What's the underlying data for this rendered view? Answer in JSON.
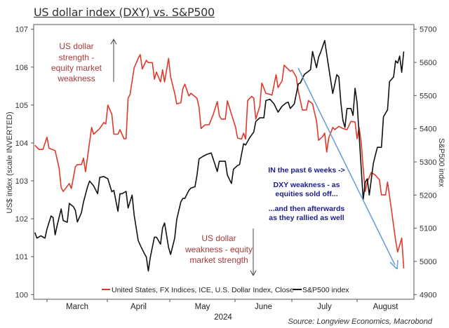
{
  "title": "US dollar index (DXY) vs. S&P500",
  "source": "Source: Longview Economics, Macrobond",
  "chart_data": {
    "type": "line",
    "title": "US dollar index (DXY) vs. S&P500",
    "xlabel": "2024",
    "ylabel_left": "US$ index (scale INVERTED)",
    "ylabel_right": "S&P500 index",
    "x_ticks": [
      "March",
      "April",
      "May",
      "June",
      "July",
      "August"
    ],
    "y_left": {
      "range": [
        100,
        107
      ],
      "ticks": [
        "100",
        "101",
        "102",
        "103",
        "104",
        "105",
        "106",
        "107"
      ]
    },
    "y_right": {
      "range": [
        4900,
        5700
      ],
      "ticks": [
        "4900",
        "5000",
        "5100",
        "5200",
        "5300",
        "5400",
        "5500",
        "5600",
        "5700"
      ]
    },
    "grid": false,
    "legend_position": "bottom",
    "series": [
      {
        "name": "United States, FX Indices, ICE, U.S. Dollar Index, Close",
        "axis": "left",
        "color": "#e0392b",
        "points": [
          [
            "2024-02-24",
            103.94
          ],
          [
            "2024-02-26",
            103.83
          ],
          [
            "2024-02-28",
            103.83
          ],
          [
            "2024-03-01",
            104.15
          ],
          [
            "2024-03-02",
            103.86
          ],
          [
            "2024-03-05",
            103.8
          ],
          [
            "2024-03-07",
            103.33
          ],
          [
            "2024-03-08",
            102.82
          ],
          [
            "2024-03-09",
            102.72
          ],
          [
            "2024-03-12",
            102.93
          ],
          [
            "2024-03-13",
            102.8
          ],
          [
            "2024-03-15",
            103.37
          ],
          [
            "2024-03-16",
            103.43
          ],
          [
            "2024-03-18",
            103.43
          ],
          [
            "2024-03-19",
            103.6
          ],
          [
            "2024-03-20",
            103.24
          ],
          [
            "2024-03-23",
            104.41
          ],
          [
            "2024-03-24",
            104.23
          ],
          [
            "2024-03-27",
            104.38
          ],
          [
            "2024-03-29",
            104.54
          ],
          [
            "2024-03-30",
            104.5
          ],
          [
            "2024-03-31",
            105.0
          ],
          [
            "2024-04-02",
            104.76
          ],
          [
            "2024-04-03",
            104.23
          ],
          [
            "2024-04-05",
            104.23
          ],
          [
            "2024-04-06",
            104.35
          ],
          [
            "2024-04-08",
            104.11
          ],
          [
            "2024-04-09",
            104.11
          ],
          [
            "2024-04-10",
            105.18
          ],
          [
            "2024-04-11",
            105.28
          ],
          [
            "2024-04-13",
            105.98
          ],
          [
            "2024-04-15",
            106.23
          ],
          [
            "2024-04-16",
            106.33
          ],
          [
            "2024-04-17",
            105.95
          ],
          [
            "2024-04-19",
            106.18
          ],
          [
            "2024-04-20",
            106.12
          ],
          [
            "2024-04-22",
            106.12
          ],
          [
            "2024-04-23",
            105.68
          ],
          [
            "2024-04-24",
            105.87
          ],
          [
            "2024-04-26",
            105.61
          ],
          [
            "2024-04-27",
            105.93
          ],
          [
            "2024-04-28",
            105.61
          ],
          [
            "2024-04-30",
            106.23
          ],
          [
            "2024-05-01",
            105.74
          ],
          [
            "2024-05-03",
            105.31
          ],
          [
            "2024-05-04",
            105.03
          ],
          [
            "2024-05-06",
            105.06
          ],
          [
            "2024-05-07",
            105.43
          ],
          [
            "2024-05-08",
            105.55
          ],
          [
            "2024-05-10",
            105.24
          ],
          [
            "2024-05-11",
            105.31
          ],
          [
            "2024-05-14",
            105.18
          ],
          [
            "2024-05-15",
            104.94
          ],
          [
            "2024-05-16",
            104.38
          ],
          [
            "2024-05-18",
            104.48
          ],
          [
            "2024-05-20",
            104.48
          ],
          [
            "2024-05-22",
            104.75
          ],
          [
            "2024-05-24",
            105.09
          ],
          [
            "2024-05-25",
            104.72
          ],
          [
            "2024-05-26",
            104.63
          ],
          [
            "2024-05-28",
            104.63
          ],
          [
            "2024-05-29",
            105.11
          ],
          [
            "2024-05-31",
            104.76
          ],
          [
            "2024-06-02",
            104.42
          ],
          [
            "2024-06-03",
            104.13
          ],
          [
            "2024-06-05",
            104.1
          ],
          [
            "2024-06-06",
            104.26
          ],
          [
            "2024-06-07",
            104.1
          ],
          [
            "2024-06-08",
            105.12
          ],
          [
            "2024-06-10",
            105.23
          ],
          [
            "2024-06-11",
            105.18
          ],
          [
            "2024-06-12",
            104.63
          ],
          [
            "2024-06-14",
            104.97
          ],
          [
            "2024-06-15",
            105.58
          ],
          [
            "2024-06-17",
            105.31
          ],
          [
            "2024-06-19",
            105.28
          ],
          [
            "2024-06-20",
            105.26
          ],
          [
            "2024-06-22",
            105.8
          ],
          [
            "2024-06-23",
            105.46
          ],
          [
            "2024-06-25",
            105.64
          ],
          [
            "2024-06-26",
            106.05
          ],
          [
            "2024-06-29",
            105.89
          ],
          [
            "2024-06-30",
            105.92
          ],
          [
            "2024-07-02",
            105.74
          ],
          [
            "2024-07-03",
            105.37
          ],
          [
            "2024-07-05",
            104.87
          ],
          [
            "2024-07-07",
            104.87
          ],
          [
            "2024-07-08",
            105.12
          ],
          [
            "2024-07-10",
            105.03
          ],
          [
            "2024-07-12",
            104.57
          ],
          [
            "2024-07-13",
            104.07
          ],
          [
            "2024-07-15",
            104.17
          ],
          [
            "2024-07-16",
            104.26
          ],
          [
            "2024-07-17",
            103.76
          ],
          [
            "2024-07-18",
            104.13
          ],
          [
            "2024-07-20",
            104.41
          ],
          [
            "2024-07-21",
            104.35
          ],
          [
            "2024-07-23",
            104.44
          ],
          [
            "2024-07-25",
            104.38
          ],
          [
            "2024-07-27",
            104.35
          ],
          [
            "2024-07-29",
            104.57
          ],
          [
            "2024-07-31",
            104.55
          ],
          [
            "2024-08-01",
            104.11
          ],
          [
            "2024-08-02",
            104.41
          ],
          [
            "2024-08-03",
            104.02
          ],
          [
            "2024-08-04",
            103.33
          ],
          [
            "2024-08-05",
            102.72
          ],
          [
            "2024-08-06",
            102.97
          ],
          [
            "2024-08-08",
            103.22
          ],
          [
            "2024-08-10",
            103.15
          ],
          [
            "2024-08-12",
            103.03
          ],
          [
            "2024-08-13",
            102.63
          ],
          [
            "2024-08-15",
            102.63
          ],
          [
            "2024-08-16",
            102.97
          ],
          [
            "2024-08-18",
            102.22
          ],
          [
            "2024-08-20",
            101.43
          ],
          [
            "2024-08-21",
            101.12
          ],
          [
            "2024-08-23",
            101.49
          ],
          [
            "2024-08-24",
            100.69
          ]
        ]
      },
      {
        "name": "S&P500 index",
        "axis": "right",
        "color": "#111111",
        "points": [
          [
            "2024-02-24",
            5087
          ],
          [
            "2024-02-25",
            5070
          ],
          [
            "2024-02-27",
            5077
          ],
          [
            "2024-02-29",
            5070
          ],
          [
            "2024-03-01",
            5098
          ],
          [
            "2024-03-03",
            5137
          ],
          [
            "2024-03-04",
            5132
          ],
          [
            "2024-03-05",
            5080
          ],
          [
            "2024-03-06",
            5108
          ],
          [
            "2024-03-08",
            5158
          ],
          [
            "2024-03-09",
            5123
          ],
          [
            "2024-03-11",
            5118
          ],
          [
            "2024-03-12",
            5175
          ],
          [
            "2024-03-14",
            5165
          ],
          [
            "2024-03-15",
            5154
          ],
          [
            "2024-03-16",
            5119
          ],
          [
            "2024-03-18",
            5147
          ],
          [
            "2024-03-19",
            5179
          ],
          [
            "2024-03-21",
            5225
          ],
          [
            "2024-03-22",
            5242
          ],
          [
            "2024-03-24",
            5228
          ],
          [
            "2024-03-26",
            5204
          ],
          [
            "2024-03-27",
            5253
          ],
          [
            "2024-03-29",
            5256
          ],
          [
            "2024-03-31",
            5249
          ],
          [
            "2024-04-02",
            5210
          ],
          [
            "2024-04-03",
            5214
          ],
          [
            "2024-04-05",
            5151
          ],
          [
            "2024-04-06",
            5204
          ],
          [
            "2024-04-07",
            5204
          ],
          [
            "2024-04-09",
            5211
          ],
          [
            "2024-04-10",
            5161
          ],
          [
            "2024-04-12",
            5200
          ],
          [
            "2024-04-13",
            5140
          ],
          [
            "2024-04-15",
            5063
          ],
          [
            "2024-04-16",
            5049
          ],
          [
            "2024-04-18",
            5024
          ],
          [
            "2024-04-19",
            5013
          ],
          [
            "2024-04-20",
            4971
          ],
          [
            "2024-04-21",
            5013
          ],
          [
            "2024-04-23",
            5073
          ],
          [
            "2024-04-24",
            5073
          ],
          [
            "2024-04-26",
            5052
          ],
          [
            "2024-04-27",
            5101
          ],
          [
            "2024-04-28",
            5116
          ],
          [
            "2024-04-30",
            5042
          ],
          [
            "2024-05-01",
            5021
          ],
          [
            "2024-05-03",
            5070
          ],
          [
            "2024-05-04",
            5126
          ],
          [
            "2024-05-06",
            5179
          ],
          [
            "2024-05-07",
            5190
          ],
          [
            "2024-05-08",
            5190
          ],
          [
            "2024-05-10",
            5214
          ],
          [
            "2024-05-11",
            5221
          ],
          [
            "2024-05-13",
            5225
          ],
          [
            "2024-05-14",
            5260
          ],
          [
            "2024-05-15",
            5309
          ],
          [
            "2024-05-17",
            5317
          ],
          [
            "2024-05-19",
            5323
          ],
          [
            "2024-05-21",
            5327
          ],
          [
            "2024-05-22",
            5309
          ],
          [
            "2024-05-24",
            5271
          ],
          [
            "2024-05-25",
            5302
          ],
          [
            "2024-05-28",
            5302
          ],
          [
            "2024-05-29",
            5260
          ],
          [
            "2024-05-31",
            5235
          ],
          [
            "2024-06-01",
            5278
          ],
          [
            "2024-06-03",
            5289
          ],
          [
            "2024-06-04",
            5292
          ],
          [
            "2024-06-06",
            5355
          ],
          [
            "2024-06-07",
            5351
          ],
          [
            "2024-06-09",
            5373
          ],
          [
            "2024-06-11",
            5390
          ],
          [
            "2024-06-12",
            5422
          ],
          [
            "2024-06-14",
            5433
          ],
          [
            "2024-06-16",
            5433
          ],
          [
            "2024-06-17",
            5485
          ],
          [
            "2024-06-19",
            5489
          ],
          [
            "2024-06-21",
            5475
          ],
          [
            "2024-06-23",
            5450
          ],
          [
            "2024-06-25",
            5468
          ],
          [
            "2024-06-27",
            5478
          ],
          [
            "2024-06-28",
            5480
          ],
          [
            "2024-06-29",
            5461
          ],
          [
            "2024-07-01",
            5475
          ],
          [
            "2024-07-03",
            5535
          ],
          [
            "2024-07-04",
            5538
          ],
          [
            "2024-07-06",
            5564
          ],
          [
            "2024-07-08",
            5573
          ],
          [
            "2024-07-09",
            5578
          ],
          [
            "2024-07-10",
            5633
          ],
          [
            "2024-07-12",
            5584
          ],
          [
            "2024-07-13",
            5616
          ],
          [
            "2024-07-14",
            5630
          ],
          [
            "2024-07-16",
            5666
          ],
          [
            "2024-07-18",
            5584
          ],
          [
            "2024-07-20",
            5506
          ],
          [
            "2024-07-22",
            5563
          ],
          [
            "2024-07-23",
            5556
          ],
          [
            "2024-07-24",
            5478
          ],
          [
            "2024-07-25",
            5425
          ],
          [
            "2024-07-26",
            5404
          ],
          [
            "2024-07-27",
            5461
          ],
          [
            "2024-07-29",
            5461
          ],
          [
            "2024-07-30",
            5440
          ],
          [
            "2024-07-31",
            5522
          ],
          [
            "2024-08-01",
            5478
          ],
          [
            "2024-08-04",
            5186
          ],
          [
            "2024-08-05",
            5239
          ],
          [
            "2024-08-06",
            5249
          ],
          [
            "2024-08-07",
            5200
          ],
          [
            "2024-08-09",
            5295
          ],
          [
            "2024-08-10",
            5320
          ],
          [
            "2024-08-11",
            5344
          ],
          [
            "2024-08-13",
            5344
          ],
          [
            "2024-08-14",
            5436
          ],
          [
            "2024-08-16",
            5457
          ],
          [
            "2024-08-17",
            5542
          ],
          [
            "2024-08-19",
            5556
          ],
          [
            "2024-08-20",
            5605
          ],
          [
            "2024-08-21",
            5598
          ],
          [
            "2024-08-22",
            5619
          ],
          [
            "2024-08-23",
            5570
          ],
          [
            "2024-08-24",
            5633
          ]
        ]
      }
    ],
    "annotations": {
      "strength": [
        "US dollar",
        "strength -",
        "equity market",
        "weakness"
      ],
      "weakness": [
        "US dollar",
        "weakness - equity",
        "market strength"
      ],
      "commentary": [
        "IN the past 6 weeks ->",
        "DXY weakness - as",
        "equities sold off...",
        "...and then afterwards",
        "as they rallied as well"
      ],
      "red_color": "#a83a3a",
      "blue_text_color": "#1c1c8a",
      "trend_arrow_color": "#6f9fd8"
    }
  }
}
